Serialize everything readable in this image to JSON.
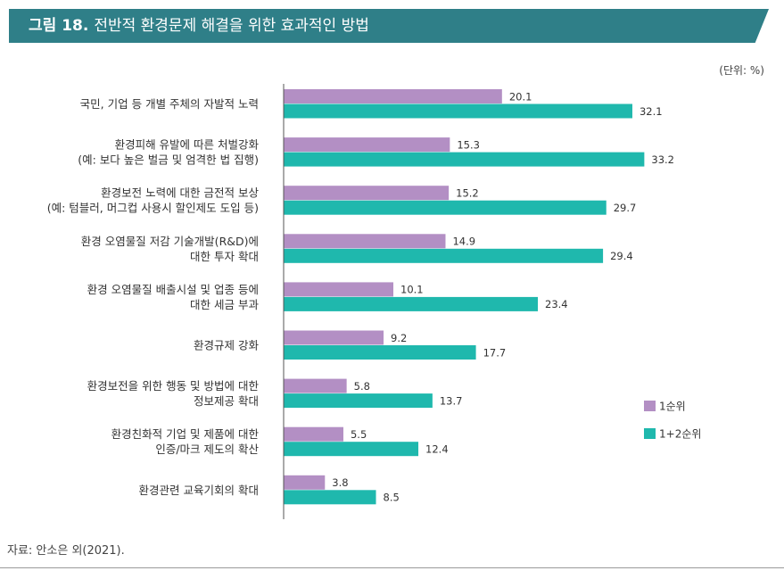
{
  "header": {
    "figure_label": "그림 18.",
    "title": "전반적 환경문제 해결을 위한 효과적인 방법"
  },
  "unit_label": "(단위: %)",
  "source": "자료: 안소은 외(2021).",
  "chart_data": {
    "type": "bar",
    "orientation": "horizontal",
    "categories": [
      [
        "국민, 기업 등 개별 주체의 자발적 노력"
      ],
      [
        "환경피해 유발에 따른 처벌강화",
        "(예: 보다 높은 벌금 및 엄격한 법 집행)"
      ],
      [
        "환경보전 노력에 대한 금전적 보상",
        "(예: 텀블러, 머그컵 사용시 할인제도 도입 등)"
      ],
      [
        "환경 오염물질 저감 기술개발(R&D)에",
        "대한 투자 확대"
      ],
      [
        "환경 오염물질 배출시설 및 업종 등에",
        "대한 세금 부과"
      ],
      [
        "환경규제 강화"
      ],
      [
        "환경보전을 위한 행동 및 방법에 대한",
        "정보제공 확대"
      ],
      [
        "환경친화적 기업 및 제품에 대한",
        "인증/마크 제도의 확산"
      ],
      [
        "환경관련 교육기회의 확대"
      ]
    ],
    "series": [
      {
        "name": "1순위",
        "color": "#b38fc4",
        "values": [
          20.1,
          15.3,
          15.2,
          14.9,
          10.1,
          9.2,
          5.8,
          5.5,
          3.8
        ]
      },
      {
        "name": "1+2순위",
        "color": "#1fb8ad",
        "values": [
          32.1,
          33.2,
          29.7,
          29.4,
          23.4,
          17.7,
          13.7,
          12.4,
          8.5
        ]
      }
    ],
    "xlim": [
      0,
      40
    ],
    "legend_position": "right"
  }
}
